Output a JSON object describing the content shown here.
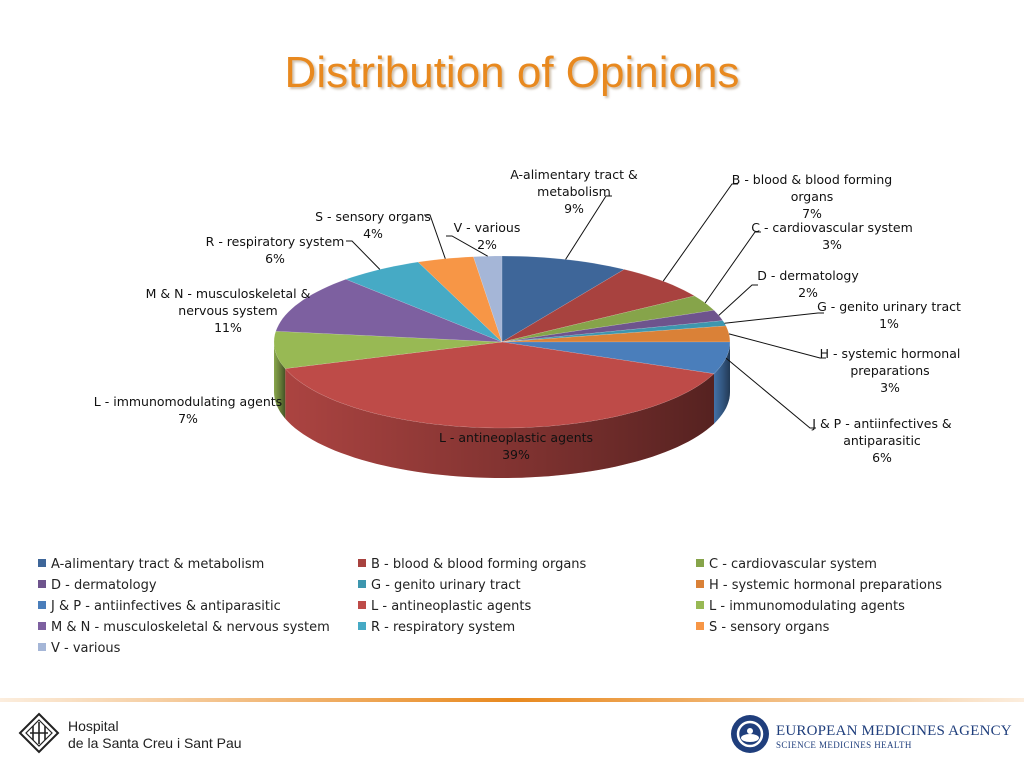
{
  "slide": {
    "title": "Distribution of Opinions"
  },
  "chart_data": {
    "type": "pie",
    "title": "Distribution of Opinions",
    "legend_position": "bottom",
    "three_d": true,
    "slices": [
      {
        "label": "A-alimentary tract & metabolism",
        "callout": [
          "A-alimentary tract &",
          "metabolism"
        ],
        "value": 9,
        "value_label": "9%",
        "color": "#3e6699"
      },
      {
        "label": "B - blood & blood forming organs",
        "callout": [
          "B - blood & blood forming",
          "organs"
        ],
        "value": 7,
        "value_label": "7%",
        "color": "#a8423f"
      },
      {
        "label": "C - cardiovascular system",
        "callout": [
          "C - cardiovascular system"
        ],
        "value": 3,
        "value_label": "3%",
        "color": "#86a44a"
      },
      {
        "label": "D - dermatology",
        "callout": [
          "D - dermatology"
        ],
        "value": 2,
        "value_label": "2%",
        "color": "#6e548d"
      },
      {
        "label": "G - genito urinary tract",
        "callout": [
          "G - genito urinary tract"
        ],
        "value": 1,
        "value_label": "1%",
        "color": "#3d96ae"
      },
      {
        "label": "H - systemic hormonal preparations",
        "callout": [
          "H - systemic hormonal",
          "preparations"
        ],
        "value": 3,
        "value_label": "3%",
        "color": "#da8137"
      },
      {
        "label": "J & P - antiinfectives & antiparasitic",
        "callout": [
          "J & P - antiinfectives &",
          "antiparasitic"
        ],
        "value": 6,
        "value_label": "6%",
        "color": "#4a7ebb"
      },
      {
        "label": "L - antineoplastic agents",
        "callout": [
          "L - antineoplastic agents"
        ],
        "value": 39,
        "value_label": "39%",
        "color": "#be4b48"
      },
      {
        "label": "L - immunomodulating agents",
        "callout": [
          "L - immunomodulating agents"
        ],
        "value": 7,
        "value_label": "7%",
        "color": "#98b954"
      },
      {
        "label": "M & N - musculoskeletal & nervous system",
        "callout": [
          "M & N - musculoskeletal &",
          "nervous system"
        ],
        "value": 11,
        "value_label": "11%",
        "color": "#7d60a0"
      },
      {
        "label": "R - respiratory system",
        "callout": [
          "R - respiratory system"
        ],
        "value": 6,
        "value_label": "6%",
        "color": "#46aac5"
      },
      {
        "label": "S - sensory organs",
        "callout": [
          "S - sensory organs"
        ],
        "value": 4,
        "value_label": "4%",
        "color": "#f79646"
      },
      {
        "label": "V - various",
        "callout": [
          "V - various"
        ],
        "value": 2,
        "value_label": "2%",
        "color": "#a5b6d7"
      }
    ]
  },
  "footer": {
    "hospital_line1": "Hospital",
    "hospital_line2": "de la Santa Creu i Sant Pau",
    "agency_name": "EUROPEAN MEDICINES AGENCY",
    "agency_tagline": "SCIENCE  MEDICINES  HEALTH",
    "accent_color": "#e8891f",
    "agency_color": "#1f3e7c"
  }
}
